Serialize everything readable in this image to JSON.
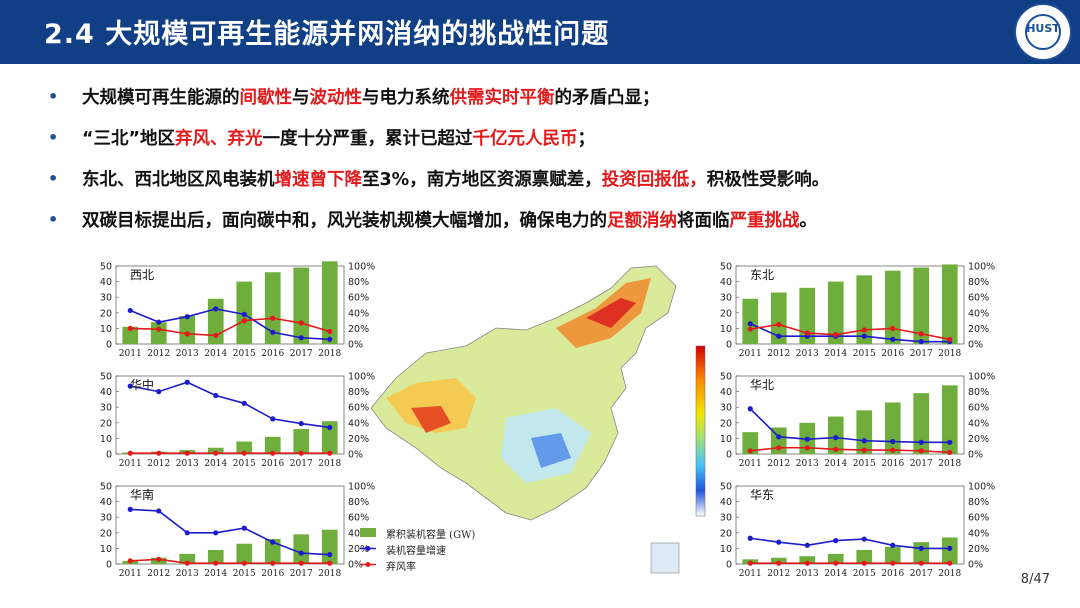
{
  "header": {
    "title": "2.4   大规模可再生能源并网消纳的挑战性问题",
    "logo_text": "HUST"
  },
  "bullets": [
    {
      "segments": [
        {
          "t": "大规模可再生能源的",
          "h": false
        },
        {
          "t": "间歇性",
          "h": true
        },
        {
          "t": "与",
          "h": false
        },
        {
          "t": "波动性",
          "h": true
        },
        {
          "t": "与电力系统",
          "h": false
        },
        {
          "t": "供需实时平衡",
          "h": true
        },
        {
          "t": "的矛盾凸显；",
          "h": false
        }
      ]
    },
    {
      "segments": [
        {
          "t": " “三北”地区",
          "h": false
        },
        {
          "t": "弃风、弃光",
          "h": true
        },
        {
          "t": "一度十分严重，累计已超过",
          "h": false
        },
        {
          "t": "千亿元人民币",
          "h": true
        },
        {
          "t": "；",
          "h": false
        }
      ]
    },
    {
      "segments": [
        {
          "t": "东北、西北地区风电装机",
          "h": false
        },
        {
          "t": "增速曾下降",
          "h": true
        },
        {
          "t": "至3%，南方地区资源禀赋差，",
          "h": false
        },
        {
          "t": "投资回报低，",
          "h": true
        },
        {
          "t": "积极性受影响。",
          "h": false
        }
      ]
    },
    {
      "segments": [
        {
          "t": "双碳目标提出后，面向碳中和，风光装机规模大幅增加，确保电力的",
          "h": false
        },
        {
          "t": "足额消纳",
          "h": true
        },
        {
          "t": "将面临",
          "h": false
        },
        {
          "t": "严重挑战",
          "h": true
        },
        {
          "t": "。",
          "h": false
        }
      ]
    }
  ],
  "legend": {
    "items": [
      {
        "label": "累积装机容量 (GW)",
        "kind": "bar",
        "color": "#6fad3c"
      },
      {
        "label": "装机容量增速",
        "kind": "line",
        "color": "#1c1ccc"
      },
      {
        "label": "弃风率",
        "kind": "line",
        "color": "#e31a1c"
      }
    ]
  },
  "page": {
    "number": "8/47"
  },
  "colors": {
    "bar": "#6fad3c",
    "growth": "#1c1ccc",
    "curtail": "#e31a1c",
    "header": "#103f85"
  },
  "chart_data": [
    {
      "type": "bar",
      "region": "西北",
      "categories": [
        "2011",
        "2012",
        "2013",
        "2014",
        "2015",
        "2016",
        "2017",
        "2018"
      ],
      "ylim_left": [
        0,
        50
      ],
      "ylim_right": [
        0,
        100
      ],
      "left_ticks": [
        "0",
        "10",
        "20",
        "30",
        "40",
        "50"
      ],
      "right_ticks": [
        "0%",
        "20%",
        "40%",
        "60%",
        "80%",
        "100%"
      ],
      "series": [
        {
          "name": "累积装机容量 (GW)",
          "kind": "bar",
          "axis": "left",
          "values": [
            11,
            14,
            18,
            29,
            40,
            46,
            49,
            53
          ]
        },
        {
          "name": "装机容量增速",
          "kind": "line",
          "axis": "right",
          "values": [
            43,
            28,
            35,
            45,
            38,
            15,
            8,
            6
          ]
        },
        {
          "name": "弃风率",
          "kind": "line",
          "axis": "right",
          "values": [
            20,
            19,
            13,
            11,
            30,
            33,
            27,
            16
          ]
        }
      ]
    },
    {
      "type": "bar",
      "region": "华中",
      "categories": [
        "2011",
        "2012",
        "2013",
        "2014",
        "2015",
        "2016",
        "2017",
        "2018"
      ],
      "ylim_left": [
        0,
        50
      ],
      "ylim_right": [
        0,
        100
      ],
      "left_ticks": [
        "0",
        "10",
        "20",
        "30",
        "40",
        "50"
      ],
      "right_ticks": [
        "0%",
        "20%",
        "40%",
        "60%",
        "80%",
        "100%"
      ],
      "series": [
        {
          "name": "累积装机容量 (GW)",
          "kind": "bar",
          "axis": "left",
          "values": [
            1,
            1.5,
            2.5,
            4,
            8,
            11,
            16,
            21
          ]
        },
        {
          "name": "装机容量增速",
          "kind": "line",
          "axis": "right",
          "values": [
            87,
            80,
            92,
            75,
            65,
            45,
            39,
            34
          ]
        },
        {
          "name": "弃风率",
          "kind": "line",
          "axis": "right",
          "values": [
            1,
            1,
            1,
            1,
            1,
            1,
            1,
            1
          ]
        }
      ]
    },
    {
      "type": "bar",
      "region": "华南",
      "categories": [
        "2011",
        "2012",
        "2013",
        "2014",
        "2015",
        "2016",
        "2017",
        "2018"
      ],
      "ylim_left": [
        0,
        50
      ],
      "ylim_right": [
        0,
        100
      ],
      "left_ticks": [
        "0",
        "10",
        "20",
        "30",
        "40",
        "50"
      ],
      "right_ticks": [
        "0%",
        "20%",
        "40%",
        "60%",
        "80%",
        "100%"
      ],
      "series": [
        {
          "name": "累积装机容量 (GW)",
          "kind": "bar",
          "axis": "left",
          "values": [
            2,
            4,
            6.5,
            9,
            13,
            16,
            19,
            22
          ]
        },
        {
          "name": "装机容量增速",
          "kind": "line",
          "axis": "right",
          "values": [
            70,
            68,
            40,
            40,
            46,
            28,
            14,
            12
          ]
        },
        {
          "name": "弃风率",
          "kind": "line",
          "axis": "right",
          "values": [
            4,
            6,
            1,
            1,
            1,
            1,
            1,
            1
          ]
        }
      ]
    },
    {
      "type": "bar",
      "region": "东北",
      "categories": [
        "2011",
        "2012",
        "2013",
        "2014",
        "2015",
        "2016",
        "2017",
        "2018"
      ],
      "ylim_left": [
        0,
        50
      ],
      "ylim_right": [
        0,
        100
      ],
      "left_ticks": [
        "0",
        "10",
        "20",
        "30",
        "40",
        "50"
      ],
      "right_ticks": [
        "0%",
        "20%",
        "40%",
        "60%",
        "80%",
        "100%"
      ],
      "series": [
        {
          "name": "累积装机容量 (GW)",
          "kind": "bar",
          "axis": "left",
          "values": [
            29,
            33,
            36,
            40,
            44,
            47,
            49,
            51
          ]
        },
        {
          "name": "装机容量增速",
          "kind": "line",
          "axis": "right",
          "values": [
            26,
            10,
            10,
            10,
            10,
            6,
            3,
            3
          ]
        },
        {
          "name": "弃风率",
          "kind": "line",
          "axis": "right",
          "values": [
            19,
            25,
            14,
            12,
            18,
            20,
            13,
            6
          ]
        }
      ]
    },
    {
      "type": "bar",
      "region": "华北",
      "categories": [
        "2011",
        "2012",
        "2013",
        "2014",
        "2015",
        "2016",
        "2017",
        "2018"
      ],
      "ylim_left": [
        0,
        50
      ],
      "ylim_right": [
        0,
        100
      ],
      "left_ticks": [
        "0",
        "10",
        "20",
        "30",
        "40",
        "50"
      ],
      "right_ticks": [
        "0%",
        "20%",
        "40%",
        "60%",
        "80%",
        "100%"
      ],
      "series": [
        {
          "name": "累积装机容量 (GW)",
          "kind": "bar",
          "axis": "left",
          "values": [
            14,
            17,
            20,
            24,
            28,
            33,
            39,
            44
          ]
        },
        {
          "name": "装机容量增速",
          "kind": "line",
          "axis": "right",
          "values": [
            58,
            22,
            19,
            21,
            17,
            16,
            15,
            15
          ]
        },
        {
          "name": "弃风率",
          "kind": "line",
          "axis": "right",
          "values": [
            4,
            8,
            8,
            6,
            5,
            5,
            4,
            2
          ]
        }
      ]
    },
    {
      "type": "bar",
      "region": "华东",
      "categories": [
        "2011",
        "2012",
        "2013",
        "2014",
        "2015",
        "2016",
        "2017",
        "2018"
      ],
      "ylim_left": [
        0,
        50
      ],
      "ylim_right": [
        0,
        100
      ],
      "left_ticks": [
        "0",
        "10",
        "20",
        "30",
        "40",
        "50"
      ],
      "right_ticks": [
        "0%",
        "20%",
        "40%",
        "60%",
        "80%",
        "100%"
      ],
      "series": [
        {
          "name": "累积装机容量 (GW)",
          "kind": "bar",
          "axis": "left",
          "values": [
            3,
            4,
            5,
            6.5,
            9,
            11,
            14,
            17
          ]
        },
        {
          "name": "装机容量增速",
          "kind": "line",
          "axis": "right",
          "values": [
            33,
            28,
            24,
            30,
            32,
            24,
            20,
            20
          ]
        },
        {
          "name": "弃风率",
          "kind": "line",
          "axis": "right",
          "values": [
            1,
            1,
            1,
            1,
            1,
            1,
            1,
            1
          ]
        }
      ]
    }
  ]
}
